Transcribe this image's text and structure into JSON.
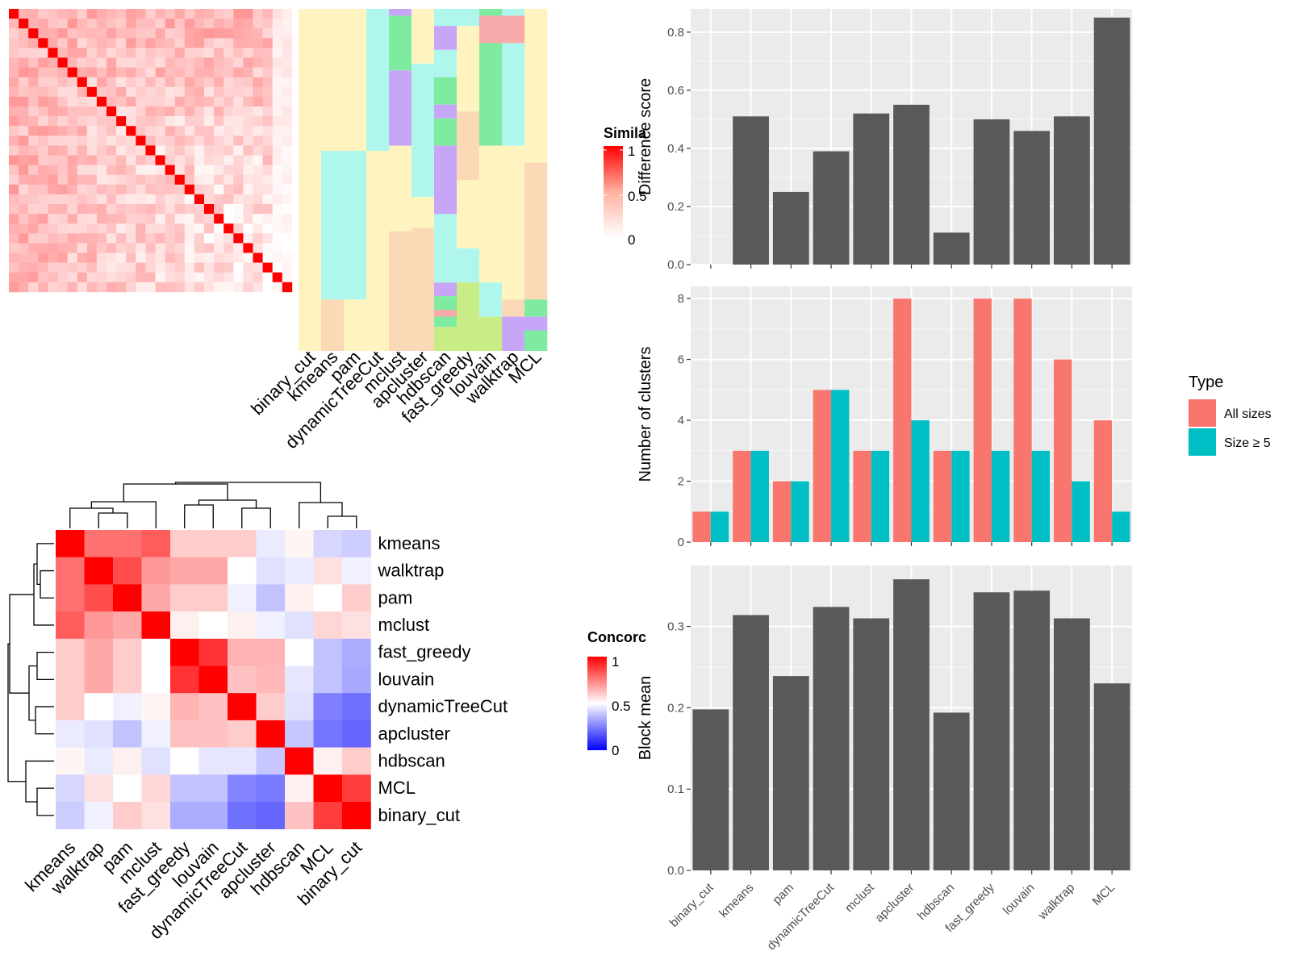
{
  "similarity_heatmap": {
    "legend_title": "Simila",
    "legend_ticks": [
      "1",
      "0.5",
      "0"
    ],
    "columns": [
      "binary_cut",
      "kmeans",
      "pam",
      "dynamicTreeCut",
      "mclust",
      "apcluster",
      "hdbscan",
      "fast_greedy",
      "louvain",
      "walktrap",
      "MCL"
    ],
    "colors": {
      "high": "#FF0000",
      "low": "#FFFFFF"
    }
  },
  "concordance_heatmap": {
    "legend_title": "Concorc",
    "legend_ticks": [
      "1",
      "0.5",
      "0"
    ],
    "rows": [
      "kmeans",
      "walktrap",
      "pam",
      "mclust",
      "fast_greedy",
      "louvain",
      "dynamicTreeCut",
      "apcluster",
      "hdbscan",
      "MCL",
      "binary_cut"
    ],
    "columns": [
      "kmeans",
      "walktrap",
      "pam",
      "mclust",
      "fast_greedy",
      "louvain",
      "dynamicTreeCut",
      "apcluster",
      "hdbscan",
      "MCL",
      "binary_cut"
    ],
    "colors": {
      "high": "#FF0000",
      "mid": "#FFFFFF",
      "low": "#0000FF"
    },
    "values": [
      [
        1.0,
        0.78,
        0.78,
        0.82,
        0.6,
        0.6,
        0.6,
        0.46,
        0.52,
        0.42,
        0.4
      ],
      [
        0.78,
        1.0,
        0.85,
        0.7,
        0.67,
        0.67,
        0.5,
        0.44,
        0.46,
        0.56,
        0.47
      ],
      [
        0.78,
        0.85,
        1.0,
        0.67,
        0.6,
        0.6,
        0.47,
        0.38,
        0.53,
        0.5,
        0.6
      ],
      [
        0.82,
        0.7,
        0.67,
        1.0,
        0.53,
        0.5,
        0.53,
        0.47,
        0.44,
        0.58,
        0.56
      ],
      [
        0.6,
        0.67,
        0.6,
        0.5,
        1.0,
        0.9,
        0.65,
        0.65,
        0.5,
        0.38,
        0.34
      ],
      [
        0.6,
        0.67,
        0.6,
        0.5,
        0.9,
        1.0,
        0.62,
        0.64,
        0.45,
        0.38,
        0.33
      ],
      [
        0.6,
        0.5,
        0.47,
        0.52,
        0.65,
        0.62,
        1.0,
        0.6,
        0.44,
        0.25,
        0.22
      ],
      [
        0.46,
        0.44,
        0.38,
        0.47,
        0.62,
        0.62,
        0.6,
        1.0,
        0.39,
        0.23,
        0.2
      ],
      [
        0.52,
        0.46,
        0.53,
        0.44,
        0.5,
        0.45,
        0.45,
        0.39,
        1.0,
        0.53,
        0.6
      ],
      [
        0.42,
        0.56,
        0.5,
        0.58,
        0.38,
        0.38,
        0.26,
        0.24,
        0.53,
        1.0,
        0.88
      ],
      [
        0.4,
        0.47,
        0.6,
        0.56,
        0.34,
        0.34,
        0.22,
        0.2,
        0.62,
        0.88,
        1.0
      ]
    ]
  },
  "chart_data": [
    {
      "type": "bar",
      "ylabel": "Difference score",
      "categories": [
        "binary_cut",
        "kmeans",
        "pam",
        "dynamicTreeCut",
        "mclust",
        "apcluster",
        "hdbscan",
        "fast_greedy",
        "louvain",
        "walktrap",
        "MCL"
      ],
      "values": [
        0.0,
        0.51,
        0.25,
        0.39,
        0.52,
        0.55,
        0.11,
        0.5,
        0.46,
        0.51,
        0.85
      ],
      "ylim": [
        0,
        0.88
      ],
      "yticks": [
        "0.0",
        "0.2",
        "0.4",
        "0.6",
        "0.8"
      ],
      "bar_color": "#595959",
      "panel_color": "#EBEBEB"
    },
    {
      "type": "bar",
      "ylabel": "Number of clusters",
      "categories": [
        "binary_cut",
        "kmeans",
        "pam",
        "dynamicTreeCut",
        "mclust",
        "apcluster",
        "hdbscan",
        "fast_greedy",
        "louvain",
        "walktrap",
        "MCL"
      ],
      "series": [
        {
          "name": "All sizes",
          "values": [
            1,
            3,
            2,
            5,
            3,
            8,
            3,
            8,
            8,
            6,
            4
          ],
          "color": "#F8766D"
        },
        {
          "name": "Size ≥ 5",
          "values": [
            1,
            3,
            2,
            5,
            3,
            4,
            3,
            3,
            3,
            2,
            1
          ],
          "color": "#00BFC4"
        }
      ],
      "ylim": [
        0,
        8.4
      ],
      "yticks": [
        "0",
        "2",
        "4",
        "6",
        "8"
      ],
      "legend_title": "Type",
      "legend_position": "right",
      "panel_color": "#EBEBEB"
    },
    {
      "type": "bar",
      "ylabel": "Block mean",
      "xtick_labels": [
        "binary_cut",
        "kmeans",
        "pam",
        "dynamicTreeCut",
        "mclust",
        "apcluster",
        "hdbscan",
        "fast_greedy",
        "louvain",
        "walktrap",
        "MCL"
      ],
      "categories": [
        "binary_cut",
        "kmeans",
        "pam",
        "dynamicTreeCut",
        "mclust",
        "apcluster",
        "hdbscan",
        "fast_greedy",
        "louvain",
        "walktrap",
        "MCL"
      ],
      "values": [
        0.198,
        0.314,
        0.239,
        0.324,
        0.31,
        0.358,
        0.194,
        0.342,
        0.344,
        0.31,
        0.23
      ],
      "ylim": [
        0,
        0.375
      ],
      "yticks": [
        "0.0",
        "0.1",
        "0.2",
        "0.3"
      ],
      "bar_color": "#595959",
      "panel_color": "#EBEBEB"
    }
  ]
}
